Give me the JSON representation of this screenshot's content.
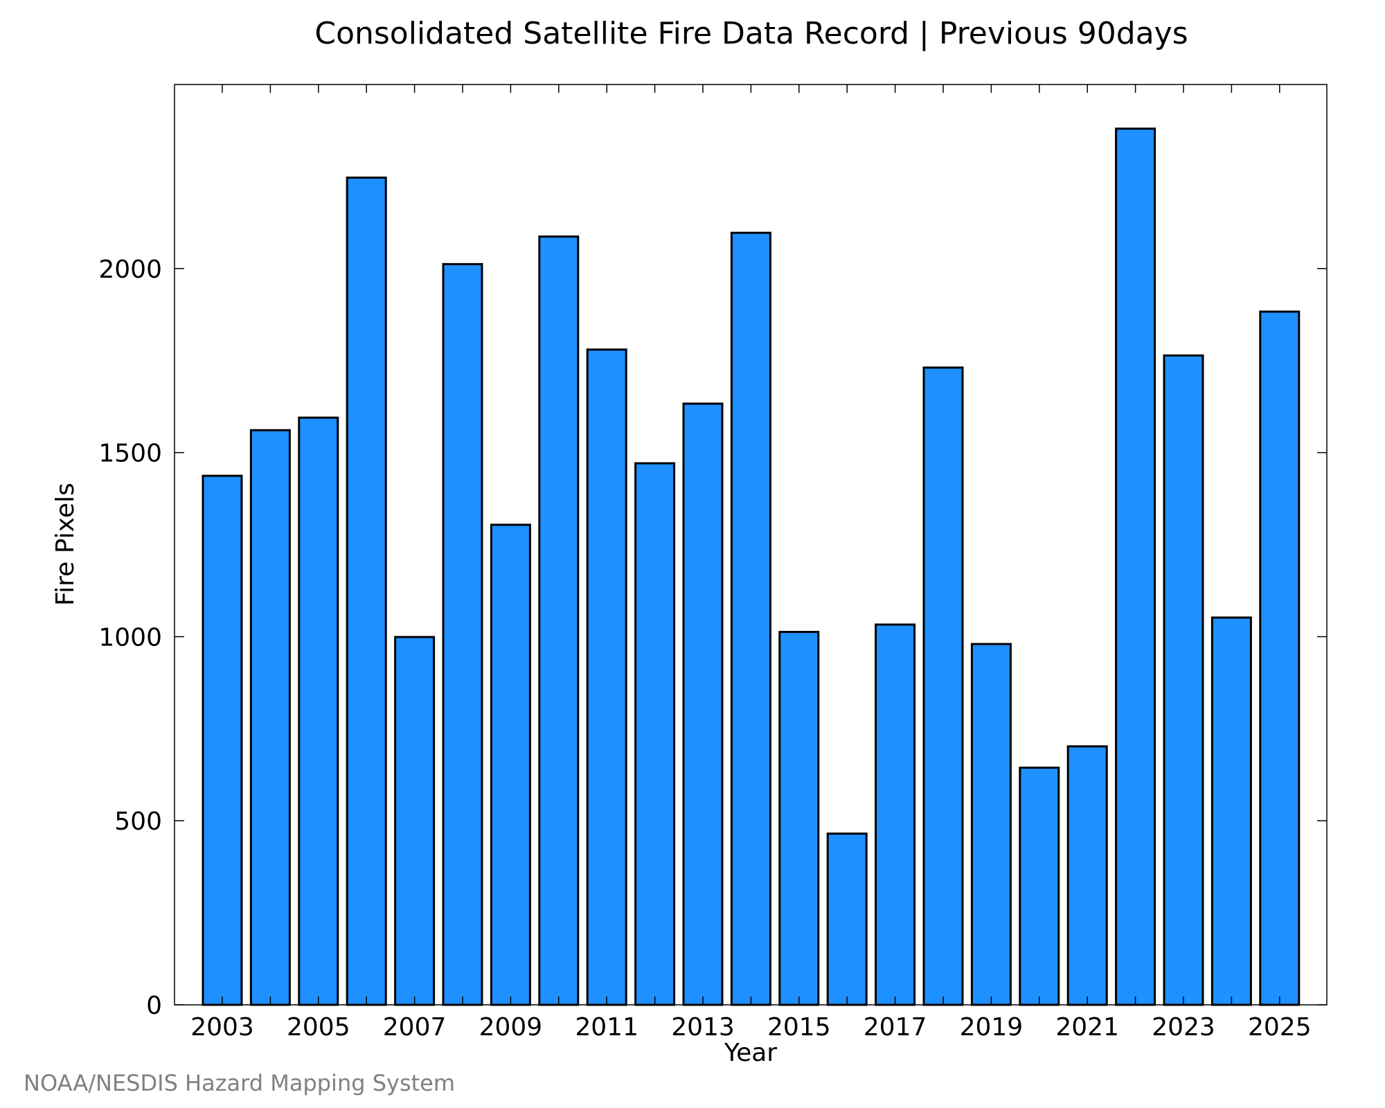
{
  "chart_data": {
    "type": "bar",
    "title": "Consolidated Satellite Fire Data Record | Previous 90days",
    "xlabel": "Year",
    "ylabel": "Fire Pixels",
    "categories": [
      "2003",
      "2004",
      "2005",
      "2006",
      "2007",
      "2008",
      "2009",
      "2010",
      "2011",
      "2012",
      "2013",
      "2014",
      "2015",
      "2016",
      "2017",
      "2018",
      "2019",
      "2020",
      "2021",
      "2022",
      "2023",
      "2024",
      "2025"
    ],
    "values": [
      1437,
      1561,
      1595,
      2247,
      999,
      2012,
      1304,
      2087,
      1780,
      1471,
      1633,
      2097,
      1013,
      465,
      1033,
      1731,
      980,
      644,
      702,
      2380,
      1764,
      1052,
      1883
    ],
    "x_tick_labels": [
      "2003",
      "2005",
      "2007",
      "2009",
      "2011",
      "2013",
      "2015",
      "2017",
      "2019",
      "2021",
      "2023",
      "2025"
    ],
    "y_tick_labels": [
      "0",
      "500",
      "1000",
      "1500",
      "2000"
    ],
    "ylim": [
      0,
      2500
    ],
    "bar_color": "#1e90ff",
    "grid": false,
    "legend": "none"
  },
  "footer": {
    "credit": "NOAA/NESDIS Hazard Mapping System"
  }
}
